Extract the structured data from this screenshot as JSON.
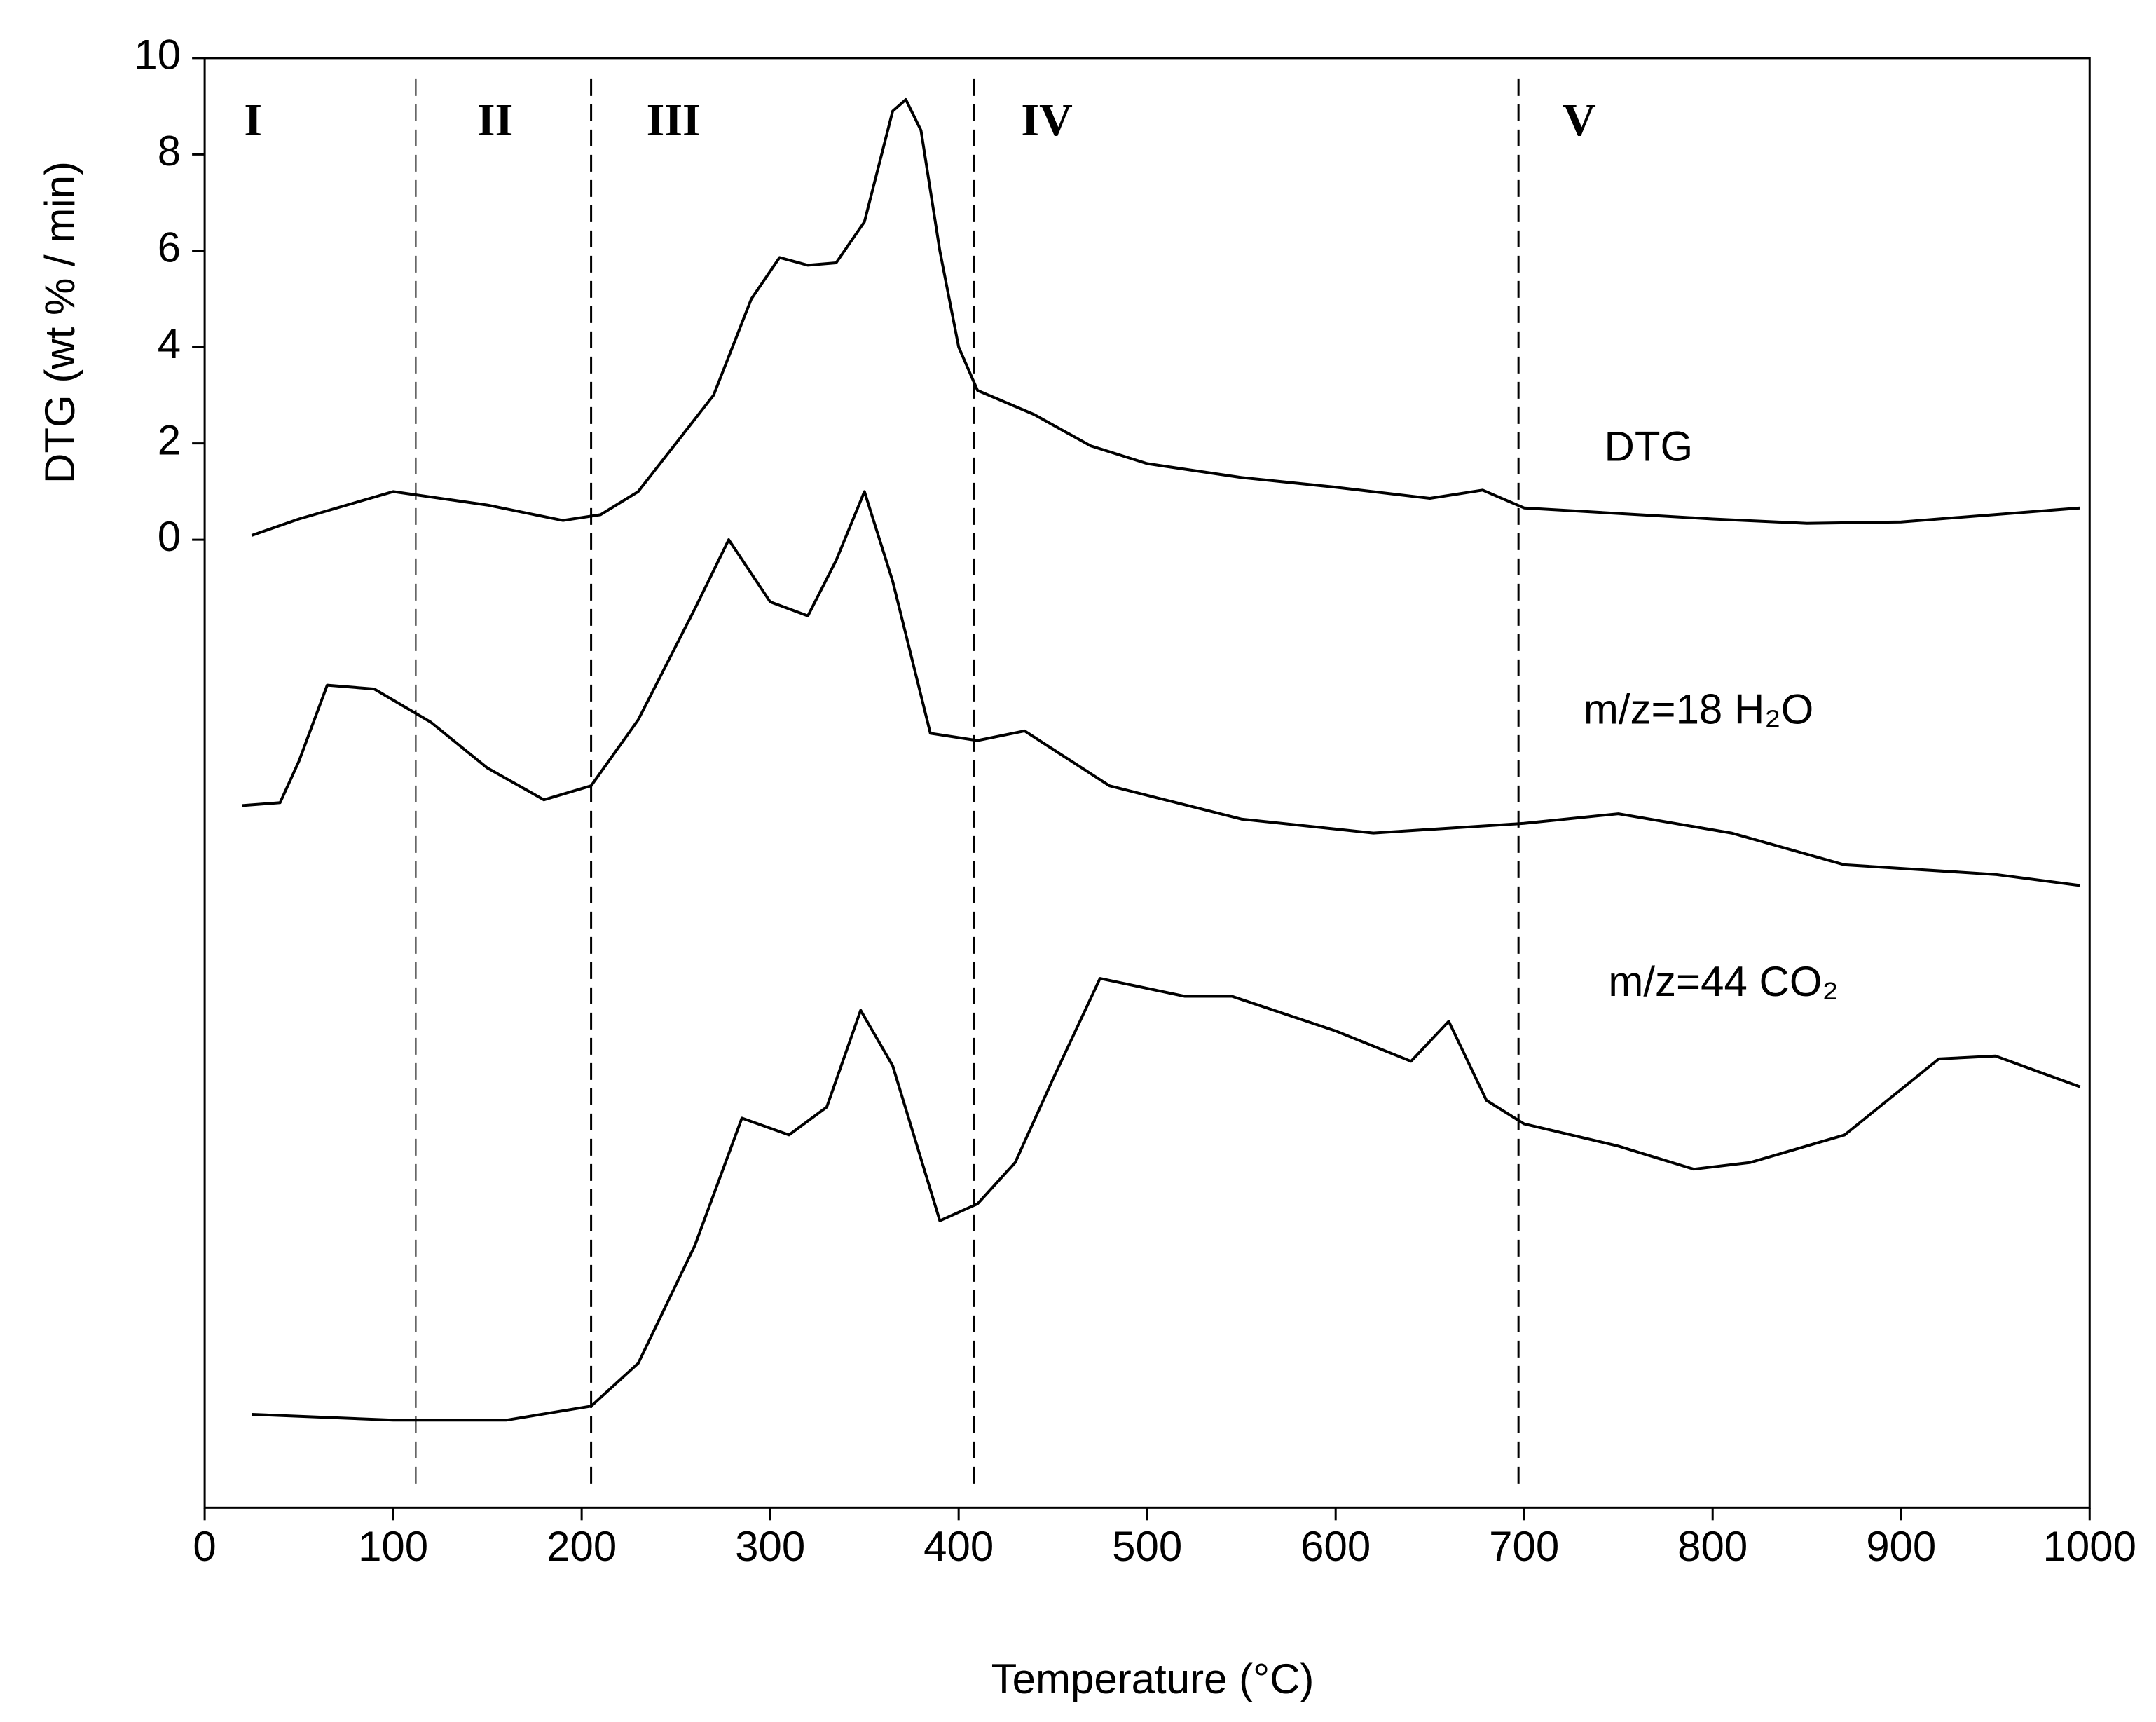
{
  "chart_data": {
    "type": "line",
    "y_label": "DTG (wt % / min)",
    "x_label": "Temperature (°C)",
    "xlim": [
      0,
      1000
    ],
    "xticks": [
      0,
      100,
      200,
      300,
      400,
      500,
      600,
      700,
      800,
      900,
      1000
    ],
    "ylim": [
      -20.1,
      10
    ],
    "yticks": [
      0,
      2,
      4,
      6,
      8,
      10
    ],
    "grid": false,
    "region_labels": [
      "I",
      "II",
      "III",
      "IV",
      "V"
    ],
    "region_boundaries": [
      112,
      205,
      408,
      697
    ],
    "series": [
      {
        "name": "DTG",
        "color": "#000000",
        "x": [
          25,
          50,
          100,
          150,
          190,
          210,
          230,
          250,
          270,
          290,
          305,
          320,
          335,
          350,
          365,
          372,
          380,
          390,
          400,
          410,
          440,
          470,
          500,
          550,
          600,
          650,
          678,
          700,
          800,
          850,
          900,
          995
        ],
        "values": [
          0.09,
          0.43,
          1.0,
          0.72,
          0.4,
          0.52,
          1.0,
          2.0,
          3.0,
          5.0,
          5.86,
          5.7,
          5.75,
          6.6,
          8.9,
          9.14,
          8.5,
          6.0,
          4.0,
          3.1,
          2.6,
          1.95,
          1.58,
          1.29,
          1.09,
          0.86,
          1.03,
          0.66,
          0.43,
          0.34,
          0.37,
          0.66
        ]
      },
      {
        "name": "m/z=18 H₂O",
        "color": "#000000",
        "x": [
          20,
          40,
          50,
          65,
          90,
          120,
          150,
          180,
          205,
          230,
          260,
          278,
          300,
          320,
          335,
          350,
          365,
          385,
          410,
          435,
          480,
          550,
          620,
          700,
          750,
          810,
          870,
          950,
          995
        ],
        "values": [
          -5.52,
          -5.46,
          -4.6,
          -3.02,
          -3.1,
          -3.79,
          -4.74,
          -5.4,
          -5.11,
          -3.74,
          -1.44,
          0,
          -1.29,
          -1.58,
          -0.43,
          1.0,
          -0.86,
          -4.02,
          -4.17,
          -3.97,
          -5.11,
          -5.8,
          -6.09,
          -5.89,
          -5.69,
          -6.09,
          -6.75,
          -6.95,
          -7.18
        ]
      },
      {
        "name": "m/z=44 CO₂",
        "color": "#000000",
        "x": [
          25,
          100,
          160,
          205,
          230,
          260,
          285,
          310,
          330,
          348,
          365,
          390,
          410,
          430,
          450,
          475,
          520,
          545,
          600,
          640,
          660,
          680,
          700,
          750,
          790,
          820,
          870,
          920,
          950,
          995
        ],
        "values": [
          -18.16,
          -18.28,
          -18.28,
          -17.99,
          -17.1,
          -14.66,
          -12.01,
          -12.36,
          -11.78,
          -9.77,
          -10.92,
          -14.14,
          -13.79,
          -12.93,
          -11.2,
          -9.11,
          -9.48,
          -9.48,
          -10.2,
          -10.83,
          -10.0,
          -11.64,
          -12.13,
          -12.59,
          -13.07,
          -12.93,
          -12.36,
          -10.78,
          -10.72,
          -11.36
        ]
      }
    ]
  }
}
